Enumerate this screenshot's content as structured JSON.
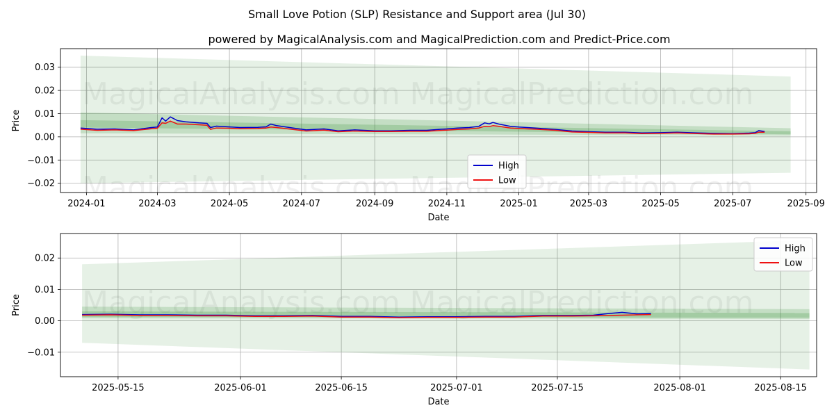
{
  "title": "Small Love Potion (SLP) Resistance and Support area (Jul 30)",
  "subtitle": "powered by MagicalAnalysis.com and MagicalPrediction.com and Predict-Price.com",
  "watermarks": [
    "MagicalAnalysis.com",
    "MagicalPrediction.com"
  ],
  "colors": {
    "high": "#0000cc",
    "low": "#ee1111",
    "band": "#2e8b2e"
  },
  "chart_data": [
    {
      "type": "line",
      "xlabel": "Date",
      "ylabel": "Price",
      "x_domain": [
        "2023-12-10",
        "2025-09-10"
      ],
      "ylim": [
        -0.024,
        0.038
      ],
      "xticks": [
        "2024-01",
        "2024-03",
        "2024-05",
        "2024-07",
        "2024-09",
        "2024-11",
        "2025-01",
        "2025-03",
        "2025-05",
        "2025-07",
        "2025-09"
      ],
      "yticks": [
        -0.02,
        -0.01,
        0.0,
        0.01,
        0.02,
        0.03
      ],
      "ytick_labels": [
        "−0.02",
        "−0.01",
        "0.00",
        "0.01",
        "0.02",
        "0.03"
      ],
      "legend": {
        "position": "lower-center",
        "entries": [
          "High",
          "Low"
        ]
      },
      "grid": true,
      "bands": [
        {
          "x": [
            "2023-12-27",
            "2025-08-19"
          ],
          "upper": [
            0.035,
            0.026
          ],
          "lower": [
            -0.02,
            -0.0155
          ]
        },
        {
          "x": [
            "2023-12-27",
            "2025-08-19"
          ],
          "upper": [
            0.0105,
            0.0037
          ],
          "lower": [
            0.0015,
            0.0006
          ]
        },
        {
          "x": [
            "2023-12-27",
            "2025-08-19"
          ],
          "upper": [
            0.0072,
            0.0024
          ],
          "lower": [
            0.004,
            0.0011
          ]
        }
      ],
      "x": [
        "2023-12-27",
        "2024-01-10",
        "2024-01-25",
        "2024-02-10",
        "2024-02-25",
        "2024-03-01",
        "2024-03-05",
        "2024-03-08",
        "2024-03-12",
        "2024-03-18",
        "2024-03-25",
        "2024-04-05",
        "2024-04-12",
        "2024-04-15",
        "2024-04-20",
        "2024-04-30",
        "2024-05-10",
        "2024-05-25",
        "2024-06-01",
        "2024-06-05",
        "2024-06-10",
        "2024-06-25",
        "2024-07-05",
        "2024-07-20",
        "2024-08-01",
        "2024-08-15",
        "2024-09-01",
        "2024-09-15",
        "2024-10-01",
        "2024-10-15",
        "2024-10-25",
        "2024-11-01",
        "2024-11-10",
        "2024-11-20",
        "2024-11-28",
        "2024-12-03",
        "2024-12-07",
        "2024-12-10",
        "2024-12-15",
        "2024-12-25",
        "2025-01-01",
        "2025-01-15",
        "2025-02-01",
        "2025-02-15",
        "2025-03-01",
        "2025-03-15",
        "2025-04-01",
        "2025-04-15",
        "2025-05-01",
        "2025-05-15",
        "2025-06-01",
        "2025-06-15",
        "2025-07-01",
        "2025-07-15",
        "2025-07-20",
        "2025-07-23",
        "2025-07-28"
      ],
      "series": [
        {
          "name": "High",
          "values": [
            0.0038,
            0.0033,
            0.0034,
            0.003,
            0.004,
            0.0042,
            0.0082,
            0.0068,
            0.0086,
            0.007,
            0.0065,
            0.006,
            0.0058,
            0.004,
            0.0046,
            0.0043,
            0.004,
            0.0041,
            0.0043,
            0.0055,
            0.0048,
            0.0037,
            0.003,
            0.0034,
            0.0026,
            0.003,
            0.0026,
            0.0026,
            0.0028,
            0.0028,
            0.0032,
            0.0034,
            0.0038,
            0.004,
            0.0045,
            0.006,
            0.0056,
            0.0062,
            0.0055,
            0.0045,
            0.0042,
            0.0038,
            0.0032,
            0.0025,
            0.0022,
            0.002,
            0.002,
            0.0017,
            0.0018,
            0.002,
            0.0017,
            0.0015,
            0.0014,
            0.0016,
            0.0018,
            0.0027,
            0.0023
          ]
        },
        {
          "name": "Low",
          "values": [
            0.0033,
            0.0028,
            0.003,
            0.0027,
            0.0035,
            0.0037,
            0.006,
            0.0058,
            0.0068,
            0.0055,
            0.0055,
            0.0052,
            0.005,
            0.0032,
            0.0038,
            0.0037,
            0.0035,
            0.0036,
            0.0038,
            0.0042,
            0.004,
            0.0031,
            0.0025,
            0.0029,
            0.0022,
            0.0025,
            0.0023,
            0.0023,
            0.0024,
            0.0024,
            0.0027,
            0.0029,
            0.0032,
            0.0034,
            0.0038,
            0.0045,
            0.0044,
            0.0048,
            0.0045,
            0.0038,
            0.0036,
            0.0033,
            0.0028,
            0.0021,
            0.0019,
            0.0017,
            0.0017,
            0.0014,
            0.0015,
            0.0017,
            0.0014,
            0.0012,
            0.0012,
            0.0013,
            0.0015,
            0.002,
            0.002
          ]
        }
      ]
    },
    {
      "type": "line",
      "xlabel": "Date",
      "ylabel": "Price",
      "x_domain": [
        "2025-05-07",
        "2025-08-20"
      ],
      "ylim": [
        -0.0178,
        0.0278
      ],
      "xticks": [
        "2025-05-15",
        "2025-06-01",
        "2025-06-15",
        "2025-07-01",
        "2025-07-15",
        "2025-08-01",
        "2025-08-15"
      ],
      "yticks": [
        -0.01,
        0.0,
        0.01,
        0.02
      ],
      "ytick_labels": [
        "−0.01",
        "0.00",
        "0.01",
        "0.02"
      ],
      "legend": {
        "position": "top-right",
        "entries": [
          "High",
          "Low"
        ]
      },
      "grid": true,
      "bands": [
        {
          "x": [
            "2025-05-10",
            "2025-08-19"
          ],
          "upper": [
            0.018,
            0.0257
          ],
          "lower": [
            -0.007,
            -0.0155
          ]
        },
        {
          "x": [
            "2025-05-10",
            "2025-08-19"
          ],
          "upper": [
            0.0045,
            0.0037
          ],
          "lower": [
            0.0008,
            0.0006
          ]
        },
        {
          "x": [
            "2025-05-10",
            "2025-08-19"
          ],
          "upper": [
            0.003,
            0.0025
          ],
          "lower": [
            0.0012,
            0.001
          ]
        }
      ],
      "x": [
        "2025-05-10",
        "2025-05-14",
        "2025-05-18",
        "2025-05-22",
        "2025-05-26",
        "2025-05-30",
        "2025-06-03",
        "2025-06-07",
        "2025-06-11",
        "2025-06-15",
        "2025-06-19",
        "2025-06-23",
        "2025-06-27",
        "2025-07-01",
        "2025-07-05",
        "2025-07-09",
        "2025-07-13",
        "2025-07-17",
        "2025-07-20",
        "2025-07-22",
        "2025-07-24",
        "2025-07-26",
        "2025-07-28"
      ],
      "series": [
        {
          "name": "High",
          "values": [
            0.002,
            0.0021,
            0.0019,
            0.0019,
            0.0018,
            0.0018,
            0.0016,
            0.0016,
            0.0017,
            0.0014,
            0.0014,
            0.0012,
            0.0013,
            0.0013,
            0.0014,
            0.0014,
            0.0017,
            0.0017,
            0.0018,
            0.0023,
            0.0027,
            0.0022,
            0.0023
          ]
        },
        {
          "name": "Low",
          "values": [
            0.0018,
            0.0019,
            0.0017,
            0.0017,
            0.0016,
            0.0016,
            0.0014,
            0.0014,
            0.0015,
            0.0012,
            0.0012,
            0.001,
            0.0011,
            0.0011,
            0.0012,
            0.0012,
            0.0015,
            0.0015,
            0.0016,
            0.0017,
            0.0018,
            0.0019,
            0.002
          ]
        }
      ]
    }
  ]
}
